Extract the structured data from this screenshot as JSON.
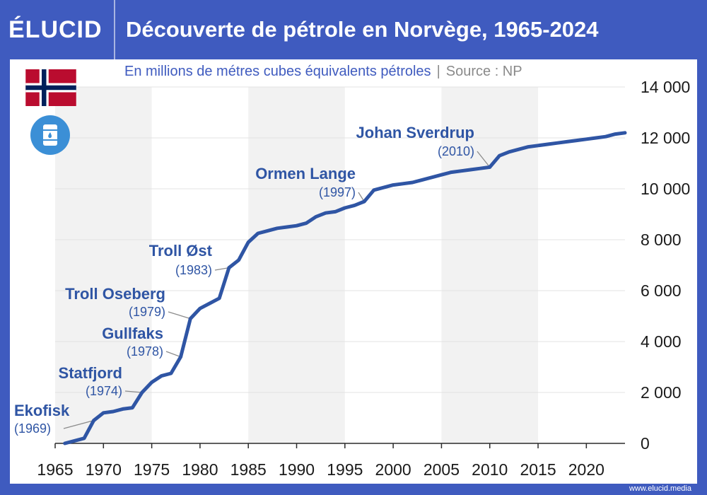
{
  "header": {
    "logo_text": "ÉLUCID",
    "title": "Découverte de pétrole en Norvège, 1965-2024"
  },
  "subtitle": {
    "unit_text": "En millions de métres cubes équivalents pétroles",
    "separator": "|",
    "source_text": "Source : NP"
  },
  "icons": {
    "flag": "norway-flag-icon",
    "oil": "oil-barrel-icon"
  },
  "footer": {
    "url": "www.elucid.media"
  },
  "colors": {
    "brand": "#3f5bbf",
    "line": "#2f55a4",
    "label": "#2f55a4",
    "band": "#f2f2f2",
    "grid": "#e3e3e3"
  },
  "chart_data": {
    "type": "line",
    "title": "Découverte de pétrole en Norvège, 1965-2024",
    "xlabel": "",
    "ylabel": "",
    "xlim": [
      1965,
      2024
    ],
    "ylim": [
      0,
      14000
    ],
    "x_ticks": [
      "1965",
      "1970",
      "1975",
      "1980",
      "1985",
      "1990",
      "1995",
      "2000",
      "2005",
      "2010",
      "2015",
      "2020"
    ],
    "y_ticks": [
      "0",
      "2 000",
      "4 000",
      "6 000",
      "8 000",
      "10 000",
      "12 000",
      "14 000"
    ],
    "grid": true,
    "y_axis_position": "right",
    "series": [
      {
        "x": [
          1966,
          1967,
          1968,
          1969,
          1970,
          1971,
          1972,
          1973,
          1974,
          1975,
          1976,
          1977,
          1978,
          1979,
          1980,
          1981,
          1982,
          1983,
          1984,
          1985,
          1986,
          1987,
          1988,
          1989,
          1990,
          1991,
          1992,
          1993,
          1994,
          1995,
          1996,
          1997,
          1998,
          1999,
          2000,
          2001,
          2002,
          2003,
          2004,
          2005,
          2006,
          2007,
          2008,
          2009,
          2010,
          2011,
          2012,
          2013,
          2014,
          2015,
          2016,
          2017,
          2018,
          2019,
          2020,
          2021,
          2022,
          2023,
          2024
        ],
        "values": [
          0,
          100,
          200,
          900,
          1200,
          1250,
          1350,
          1400,
          2000,
          2400,
          2650,
          2750,
          3400,
          4900,
          5300,
          5500,
          5700,
          6900,
          7200,
          7900,
          8250,
          8350,
          8450,
          8500,
          8550,
          8650,
          8900,
          9050,
          9100,
          9250,
          9350,
          9500,
          9950,
          10050,
          10150,
          10200,
          10250,
          10350,
          10450,
          10550,
          10650,
          10700,
          10750,
          10800,
          10850,
          11300,
          11450,
          11550,
          11650,
          11700,
          11750,
          11800,
          11850,
          11900,
          11950,
          12000,
          12050,
          12150,
          12200
        ]
      }
    ],
    "annotations": [
      {
        "name": "Ekofisk",
        "year": "(1969)",
        "x": 1969,
        "y": 900
      },
      {
        "name": "Statfjord",
        "year": "(1974)",
        "x": 1974,
        "y": 2000
      },
      {
        "name": "Gullfaks",
        "year": "(1978)",
        "x": 1978,
        "y": 3400
      },
      {
        "name": "Troll Oseberg",
        "year": "(1979)",
        "x": 1979,
        "y": 4900
      },
      {
        "name": "Troll Øst",
        "year": "(1983)",
        "x": 1983,
        "y": 6900
      },
      {
        "name": "Ormen Lange",
        "year": "(1997)",
        "x": 1997,
        "y": 9500
      },
      {
        "name": "Johan Sverdrup",
        "year": "(2010)",
        "x": 2010,
        "y": 10850
      }
    ]
  }
}
